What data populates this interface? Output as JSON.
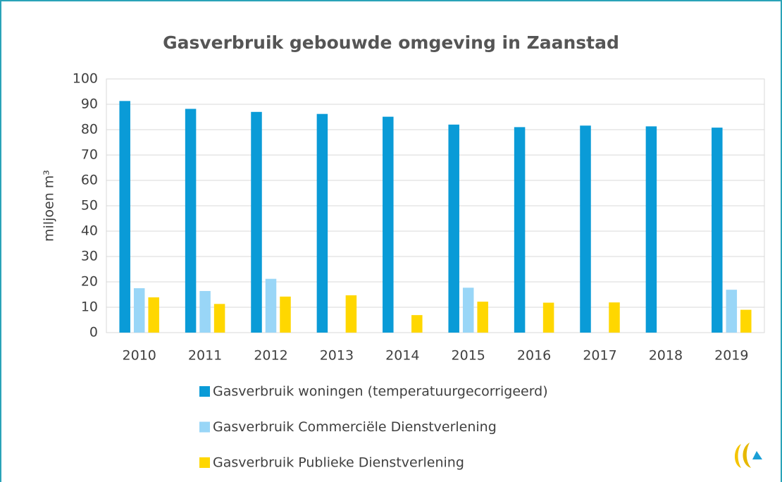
{
  "chart_data": {
    "type": "bar",
    "title": "Gasverbruik gebouwde omgeving in Zaanstad",
    "y_label": "miljoen m³",
    "categories": [
      "2010",
      "2011",
      "2012",
      "2013",
      "2014",
      "2015",
      "2016",
      "2017",
      "2018",
      "2019"
    ],
    "series": [
      {
        "name": "Gasverbruik woningen (temperatuurgecorrigeerd)",
        "color": "#0a9bd7",
        "values": [
          91.3,
          88.2,
          87,
          86.2,
          85.1,
          82,
          81,
          81.6,
          81.3,
          80.8
        ]
      },
      {
        "name": "Gasverbruik Commerciële Dienstverlening",
        "color": "#99d6f7",
        "values": [
          17.5,
          16.4,
          21.2,
          null,
          null,
          17.7,
          null,
          null,
          null,
          16.9
        ]
      },
      {
        "name": "Gasverbruik Publieke Dienstverlening",
        "color": "#ffd700",
        "values": [
          13.9,
          11.3,
          14.2,
          14.7,
          6.9,
          12.2,
          11.8,
          11.9,
          null,
          9
        ]
      }
    ],
    "ylim": [
      0,
      100
    ],
    "yticks": [
      0,
      10,
      20,
      30,
      40,
      50,
      60,
      70,
      80,
      90,
      100
    ],
    "grid": true
  }
}
